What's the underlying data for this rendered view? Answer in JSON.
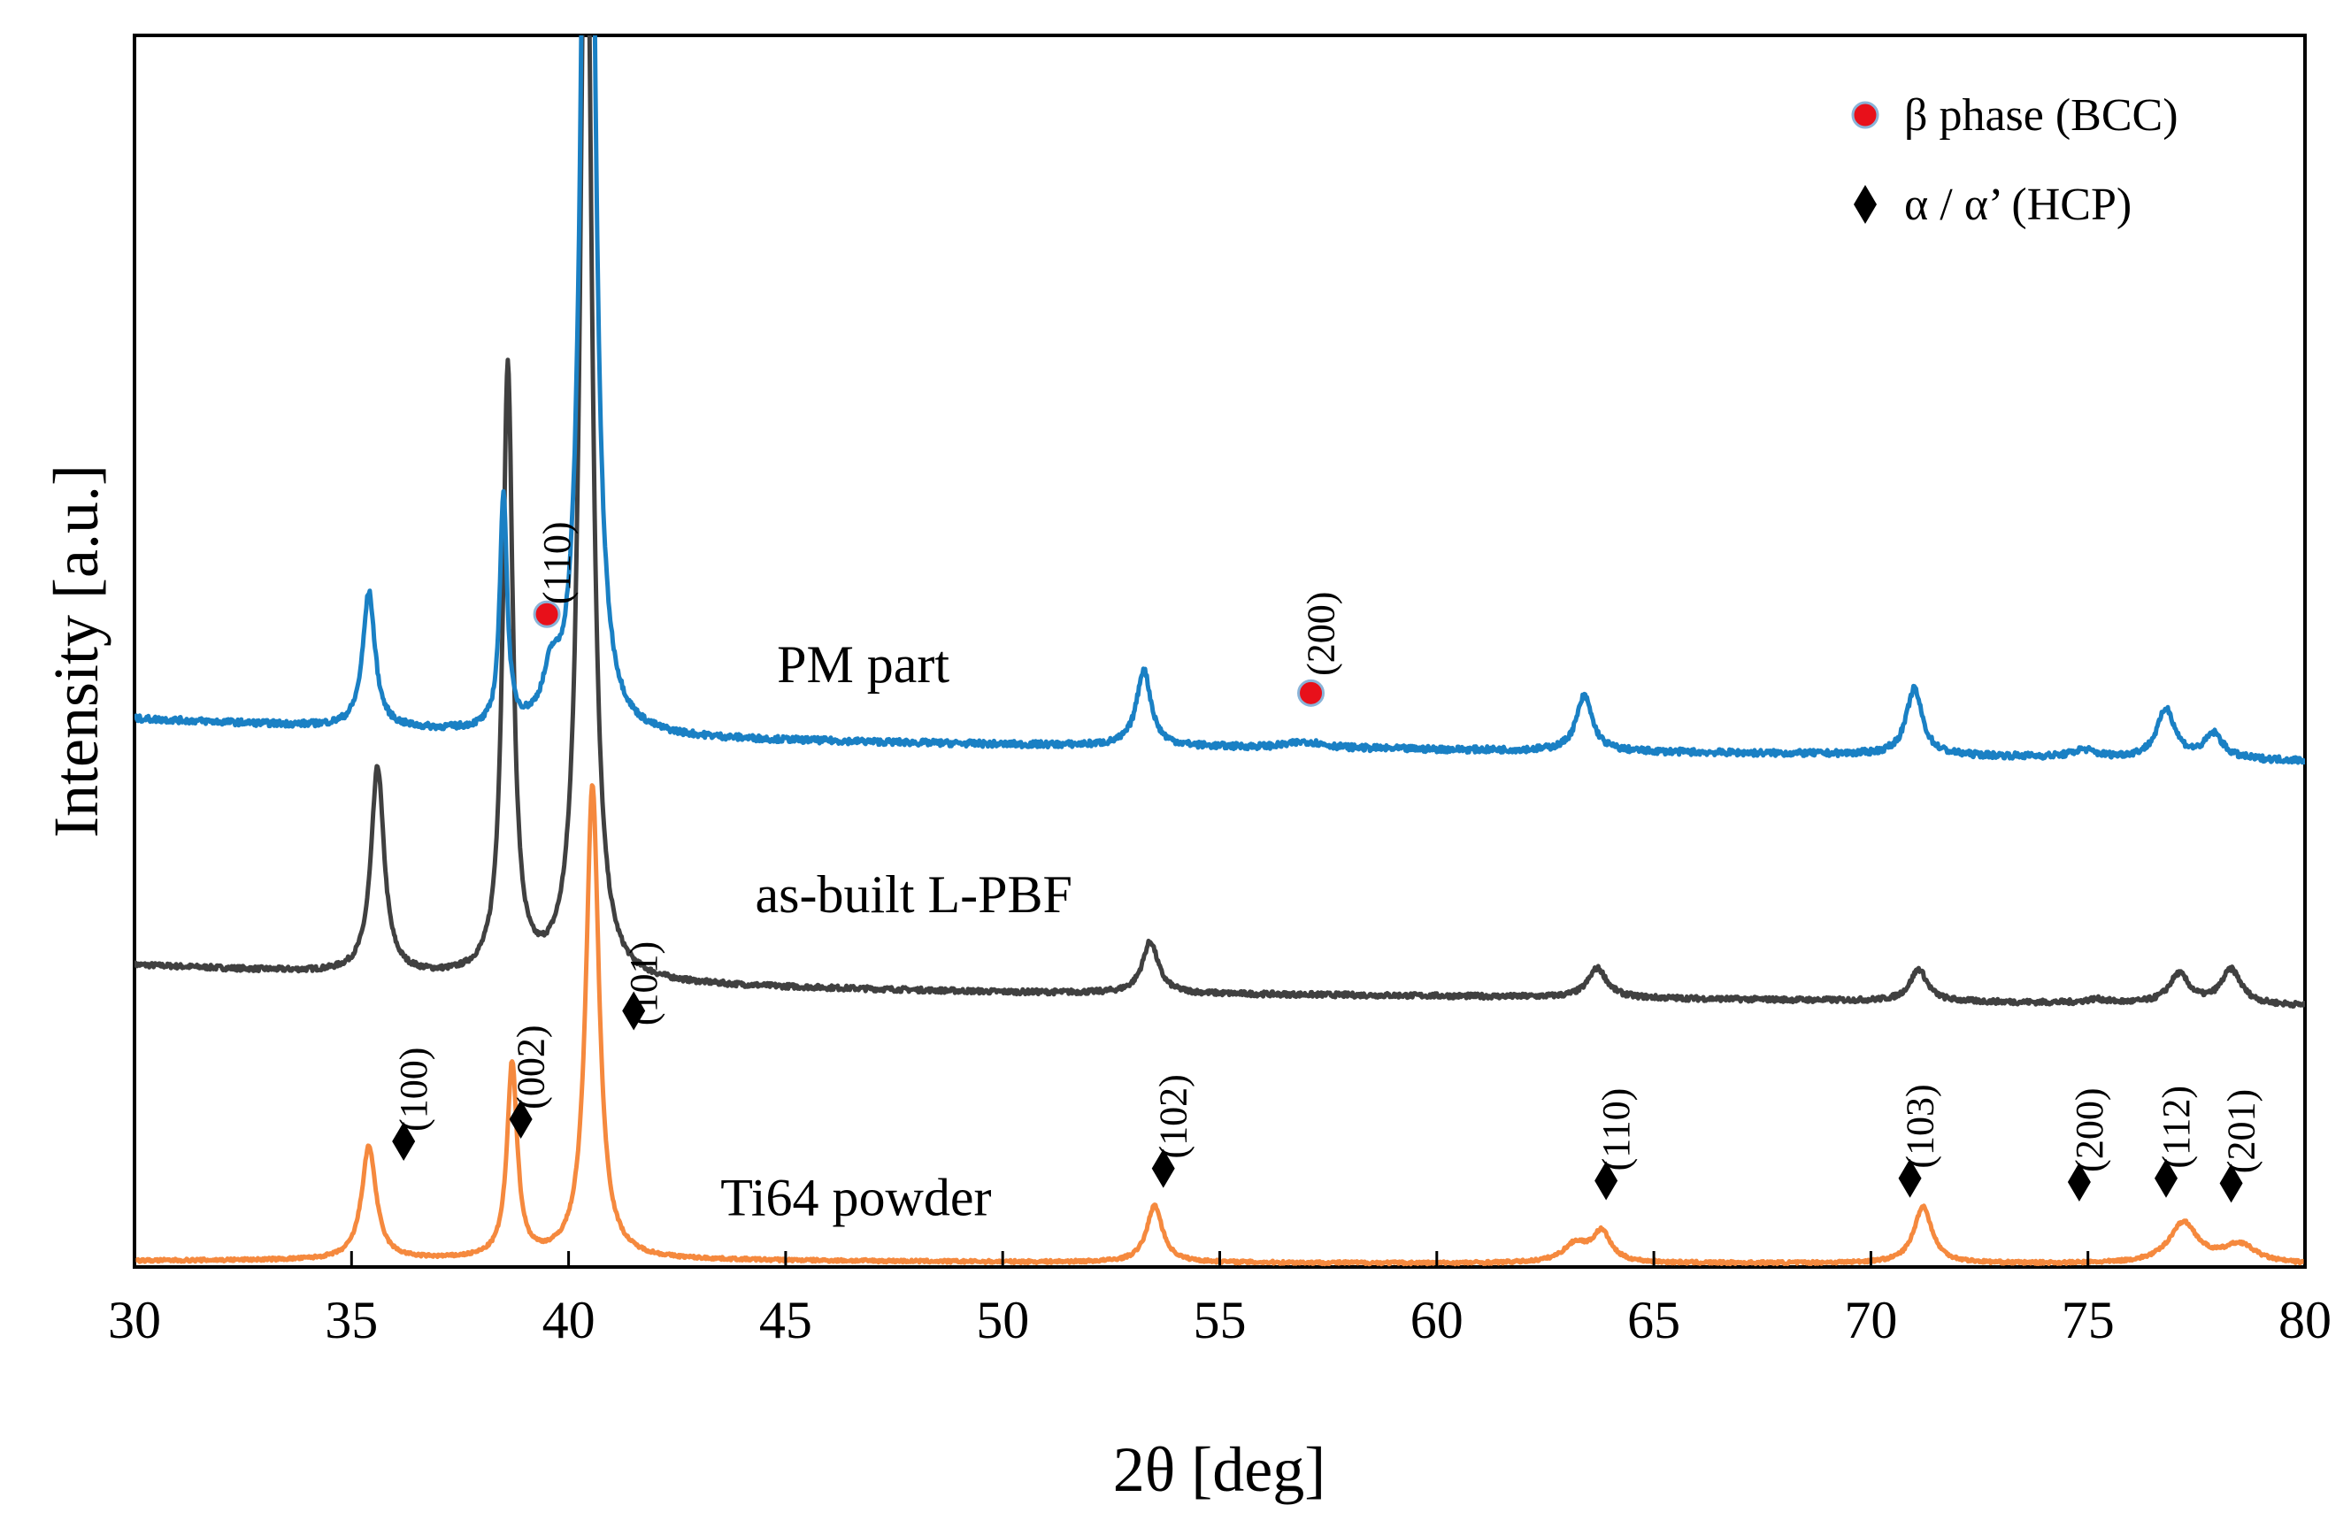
{
  "chart_data": {
    "type": "line",
    "title": "",
    "xlabel": "2θ [deg]",
    "ylabel": "Intensity [a.u.]",
    "xlim": [
      30,
      80
    ],
    "ylim": [
      0,
      100
    ],
    "xticks": [
      30,
      35,
      40,
      45,
      50,
      55,
      60,
      65,
      70,
      75,
      80
    ],
    "grid": false,
    "legend": {
      "position": "top-right",
      "entries": [
        {
          "label": "β phase (BCC)",
          "marker": "circle",
          "color": "#e8101a"
        },
        {
          "label": "α / α’ (HCP)",
          "marker": "diamond",
          "color": "#000000"
        }
      ]
    },
    "series": [
      {
        "name": "PM part",
        "color": "#1a80c4",
        "baseline": [
          [
            30,
            44.5
          ],
          [
            40,
            43.0
          ],
          [
            50,
            42.4
          ],
          [
            60,
            42.0
          ],
          [
            70,
            41.6
          ],
          [
            80,
            41.1
          ]
        ],
        "noise": 0.25,
        "peaks": [
          [
            35.4,
            11,
            0.17
          ],
          [
            38.5,
            19,
            0.1
          ],
          [
            39.6,
            3.6,
            0.22
          ],
          [
            40.45,
            120,
            0.15
          ],
          [
            53.25,
            6.2,
            0.2
          ],
          [
            57.0,
            0.5,
            0.5
          ],
          [
            63.4,
            4.5,
            0.22
          ],
          [
            71.0,
            5.4,
            0.22
          ],
          [
            74.9,
            0.6,
            0.3
          ],
          [
            76.8,
            4.0,
            0.25
          ],
          [
            77.9,
            2.0,
            0.25
          ]
        ],
        "label_at": [
          44.8,
          47.5
        ]
      },
      {
        "name": "as-built L-PBF",
        "color": "#404040",
        "baseline": [
          [
            30,
            24.5
          ],
          [
            40,
            23.0
          ],
          [
            50,
            22.3
          ],
          [
            60,
            22.0
          ],
          [
            70,
            21.6
          ],
          [
            80,
            21.2
          ]
        ],
        "noise": 0.2,
        "peaks": [
          [
            35.6,
            16.8,
            0.18
          ],
          [
            38.6,
            49.5,
            0.14
          ],
          [
            40.4,
            98,
            0.16
          ],
          [
            53.4,
            4.2,
            0.22
          ],
          [
            63.7,
            2.4,
            0.26
          ],
          [
            71.1,
            2.6,
            0.24
          ],
          [
            75.2,
            0.3,
            0.3
          ],
          [
            77.1,
            2.4,
            0.28
          ],
          [
            78.3,
            2.8,
            0.28
          ]
        ],
        "label_at": [
          44.3,
          28.8
        ]
      },
      {
        "name": "Ti64 powder",
        "color": "#f5893e",
        "baseline": [
          [
            30,
            0.5
          ],
          [
            40,
            0.6
          ],
          [
            50,
            0.4
          ],
          [
            60,
            0.3
          ],
          [
            70,
            0.3
          ],
          [
            80,
            0.2
          ]
        ],
        "noise": 0.12,
        "peaks": [
          [
            35.4,
            9.2,
            0.2
          ],
          [
            38.7,
            15.8,
            0.14
          ],
          [
            40.55,
            38.5,
            0.18
          ],
          [
            53.5,
            4.6,
            0.22
          ],
          [
            63.2,
            1.5,
            0.35
          ],
          [
            63.8,
            2.4,
            0.25
          ],
          [
            71.2,
            4.6,
            0.25
          ],
          [
            77.2,
            3.3,
            0.4
          ],
          [
            78.5,
            1.5,
            0.45
          ]
        ],
        "label_at": [
          43.5,
          4.2
        ]
      }
    ],
    "annotations": [
      {
        "x": 39.5,
        "y": 53.0,
        "marker": "circle",
        "label": "(110)",
        "label_y": 53.8
      },
      {
        "x": 57.1,
        "y": 46.6,
        "marker": "circle",
        "label": "(200)",
        "label_y": 48.0
      },
      {
        "x": 36.2,
        "y": 10.2,
        "marker": "diamond",
        "label": "(100)",
        "label_y": 11.0
      },
      {
        "x": 38.9,
        "y": 12.0,
        "marker": "diamond",
        "label": "(002)",
        "label_y": 12.8
      },
      {
        "x": 41.5,
        "y": 20.8,
        "marker": "diamond",
        "label": "(101)",
        "label_y": 19.6
      },
      {
        "x": 53.7,
        "y": 8.0,
        "marker": "diamond",
        "label": "(102)",
        "label_y": 8.8
      },
      {
        "x": 63.9,
        "y": 7.0,
        "marker": "diamond",
        "label": "(110)",
        "label_y": 7.8
      },
      {
        "x": 70.9,
        "y": 7.2,
        "marker": "diamond",
        "label": "(103)",
        "label_y": 8.0
      },
      {
        "x": 74.8,
        "y": 6.9,
        "marker": "diamond",
        "label": "(200)",
        "label_y": 7.7
      },
      {
        "x": 76.8,
        "y": 7.2,
        "marker": "diamond",
        "label": "(112)",
        "label_y": 8.0
      },
      {
        "x": 78.3,
        "y": 6.8,
        "marker": "diamond",
        "label": "(201)",
        "label_y": 7.6
      }
    ]
  }
}
